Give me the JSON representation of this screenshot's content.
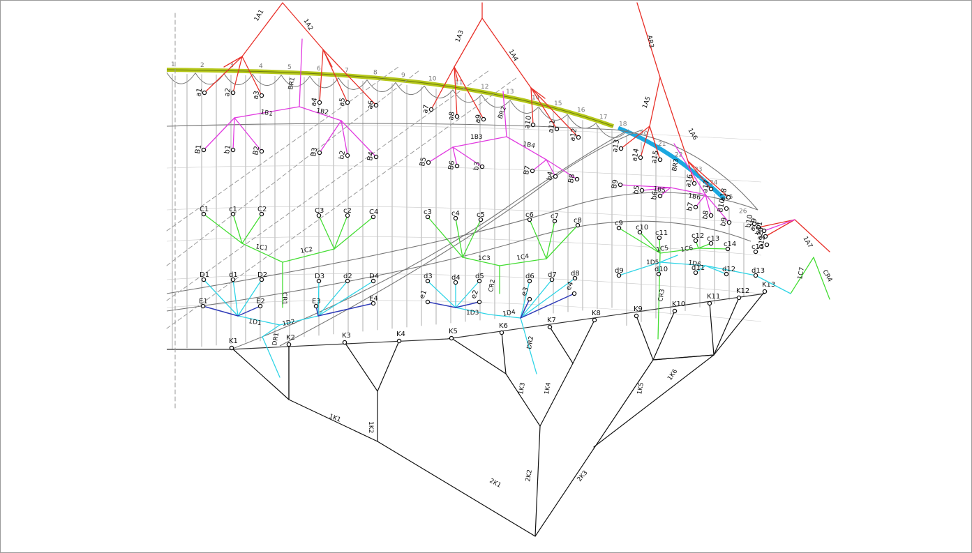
{
  "colors": {
    "upper_main": "#e8312a",
    "upper_branch": "#e13ae0",
    "middle_branch": "#44dd33",
    "lower_branch": "#2fd4e6",
    "lower_sub": "#2f3bb8",
    "ground_tree": "#111111",
    "skeleton": "#777777",
    "facade_edge": "#b6c81b",
    "facade_edge_2": "#1ba8e0",
    "guide": "#999999"
  },
  "edge_numbers": [
    "1",
    "2",
    "3",
    "4",
    "5",
    "6",
    "7",
    "8",
    "9",
    "10",
    "11",
    "12",
    "13",
    "14",
    "15",
    "16",
    "17",
    "18",
    "20",
    "21",
    "22",
    "23",
    "24",
    "25",
    "26",
    "27"
  ],
  "nodes": {
    "a": [
      "a1",
      "a2",
      "a3",
      "a4",
      "a5",
      "a6",
      "a7",
      "a8",
      "a9",
      "a10",
      "a11",
      "a12",
      "a13",
      "a14",
      "a15",
      "a16",
      "a17",
      "a18",
      "a19",
      "a20"
    ],
    "B": [
      "B1",
      "B2",
      "B3",
      "B4",
      "B5",
      "B6",
      "B7",
      "B8",
      "B9",
      "B10"
    ],
    "b": [
      "b1",
      "b2",
      "b3",
      "b4",
      "b5",
      "b6",
      "b7",
      "b8",
      "b9",
      "b10",
      "b11",
      "b12"
    ],
    "C": [
      "C1",
      "C2",
      "C3",
      "C4"
    ],
    "c": [
      "c1",
      "c2",
      "c3",
      "c4",
      "c5",
      "c6",
      "c7",
      "c8",
      "c9",
      "c10",
      "c11",
      "c12",
      "c13",
      "c14",
      "c15"
    ],
    "D": [
      "D1",
      "D2",
      "D3",
      "D4"
    ],
    "d": [
      "d1",
      "d2",
      "d3",
      "d4",
      "d5",
      "d6",
      "d7",
      "d8",
      "d9",
      "d10",
      "d11",
      "d12",
      "d13"
    ],
    "E": [
      "E1",
      "E2",
      "E3",
      "E4"
    ],
    "e": [
      "e1",
      "e2",
      "e3",
      "e4"
    ],
    "K": [
      "K1",
      "K2",
      "K3",
      "K4",
      "K5",
      "K6",
      "K7",
      "K8",
      "K9",
      "K10",
      "K11",
      "K12",
      "K13"
    ]
  },
  "branch_labels": {
    "upper": [
      "1A1",
      "1A2",
      "1A3",
      "1A4",
      "1A5",
      "1A6",
      "1A7",
      "AR3"
    ],
    "upper_sub": [
      "1B1",
      "1B2",
      "1B3",
      "1B4",
      "1B5",
      "1B6",
      "BR1",
      "BR2",
      "BR3"
    ],
    "middle": [
      "1C1",
      "1C2",
      "1C3",
      "1C4",
      "1C5",
      "1C6",
      "1C7",
      "CR1",
      "CR2",
      "CR3",
      "CR4"
    ],
    "lower": [
      "1D1",
      "1D2",
      "1D3",
      "1D4",
      "1D5",
      "1D6",
      "DR1",
      "DR2"
    ],
    "ground": [
      "1K1",
      "1K2",
      "1K3",
      "1K4",
      "1K5",
      "1K6",
      "2K1",
      "2K2",
      "2K3"
    ]
  }
}
